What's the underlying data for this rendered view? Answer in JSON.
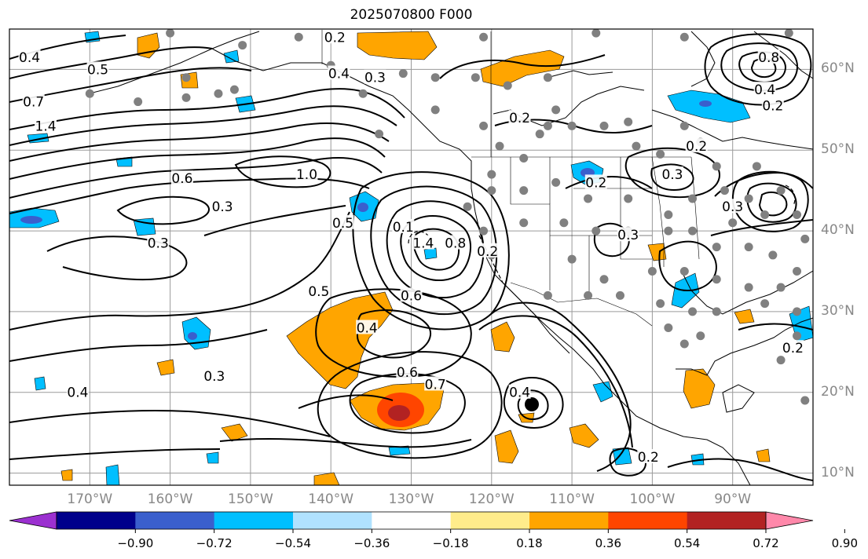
{
  "title": "2025070800 F000",
  "lat_labels": [
    "60°N",
    "50°N",
    "40°N",
    "30°N",
    "20°N",
    "10°N"
  ],
  "lon_labels": [
    "170°W",
    "160°W",
    "150°W",
    "140°W",
    "130°W",
    "120°W",
    "110°W",
    "100°W",
    "90°W"
  ],
  "colorbar": {
    "ticks": [
      "−0.90",
      "−0.72",
      "−0.54",
      "−0.36",
      "−0.18",
      "0.18",
      "0.36",
      "0.54",
      "0.72",
      "0.90"
    ],
    "colors": [
      "#9b30d0",
      "#00008b",
      "#3a5fcd",
      "#00bfff",
      "#b0e2ff",
      "#ffffff",
      "#ffec8b",
      "#ffa500",
      "#ff4500",
      "#b22222",
      "#ff88aa"
    ]
  },
  "contour_labels": [
    {
      "text": "0.4",
      "lon": -177.5,
      "lat": 61.5
    },
    {
      "text": "0.5",
      "lon": -169,
      "lat": 60
    },
    {
      "text": "0.7",
      "lon": -177,
      "lat": 56
    },
    {
      "text": "1.4",
      "lon": -175.5,
      "lat": 53
    },
    {
      "text": "0.2",
      "lon": -139.5,
      "lat": 64
    },
    {
      "text": "0.4",
      "lon": -139,
      "lat": 59.5
    },
    {
      "text": "0.3",
      "lon": -134.5,
      "lat": 59
    },
    {
      "text": "1.0",
      "lon": -143,
      "lat": 47
    },
    {
      "text": "0.6",
      "lon": -158.5,
      "lat": 46.5
    },
    {
      "text": "0.3",
      "lon": -153.5,
      "lat": 43
    },
    {
      "text": "0.5",
      "lon": -138.5,
      "lat": 41
    },
    {
      "text": "0.3",
      "lon": -161.5,
      "lat": 38.5
    },
    {
      "text": "1.4",
      "lon": -128.5,
      "lat": 38.5
    },
    {
      "text": "0.1",
      "lon": -131,
      "lat": 40.5
    },
    {
      "text": "0.8",
      "lon": -124.5,
      "lat": 38.5
    },
    {
      "text": "0.2",
      "lon": -120.5,
      "lat": 37.5
    },
    {
      "text": "0.5",
      "lon": -141.5,
      "lat": 32.5
    },
    {
      "text": "0.6",
      "lon": -130,
      "lat": 32
    },
    {
      "text": "0.4",
      "lon": -135.5,
      "lat": 28
    },
    {
      "text": "0.6",
      "lon": -130.5,
      "lat": 22.5
    },
    {
      "text": "0.7",
      "lon": -127,
      "lat": 21
    },
    {
      "text": "0.3",
      "lon": -154.5,
      "lat": 22
    },
    {
      "text": "0.4",
      "lon": -171.5,
      "lat": 20
    },
    {
      "text": "0.4",
      "lon": -116.5,
      "lat": 20
    },
    {
      "text": "0.2",
      "lon": -116.5,
      "lat": 54
    },
    {
      "text": "0.2",
      "lon": -107,
      "lat": 46
    },
    {
      "text": "0.3",
      "lon": -97.5,
      "lat": 47
    },
    {
      "text": "0.2",
      "lon": -94.5,
      "lat": 50.5
    },
    {
      "text": "0.3",
      "lon": -103,
      "lat": 39.5
    },
    {
      "text": "0.8",
      "lon": -85.5,
      "lat": 61.5
    },
    {
      "text": "0.4",
      "lon": -86,
      "lat": 57.5
    },
    {
      "text": "0.2",
      "lon": -85,
      "lat": 55.5
    },
    {
      "text": "0.3",
      "lon": -90,
      "lat": 43
    },
    {
      "text": "0.2",
      "lon": -82.5,
      "lat": 25.5
    },
    {
      "text": "0.2",
      "lon": -100.5,
      "lat": 12
    }
  ]
}
